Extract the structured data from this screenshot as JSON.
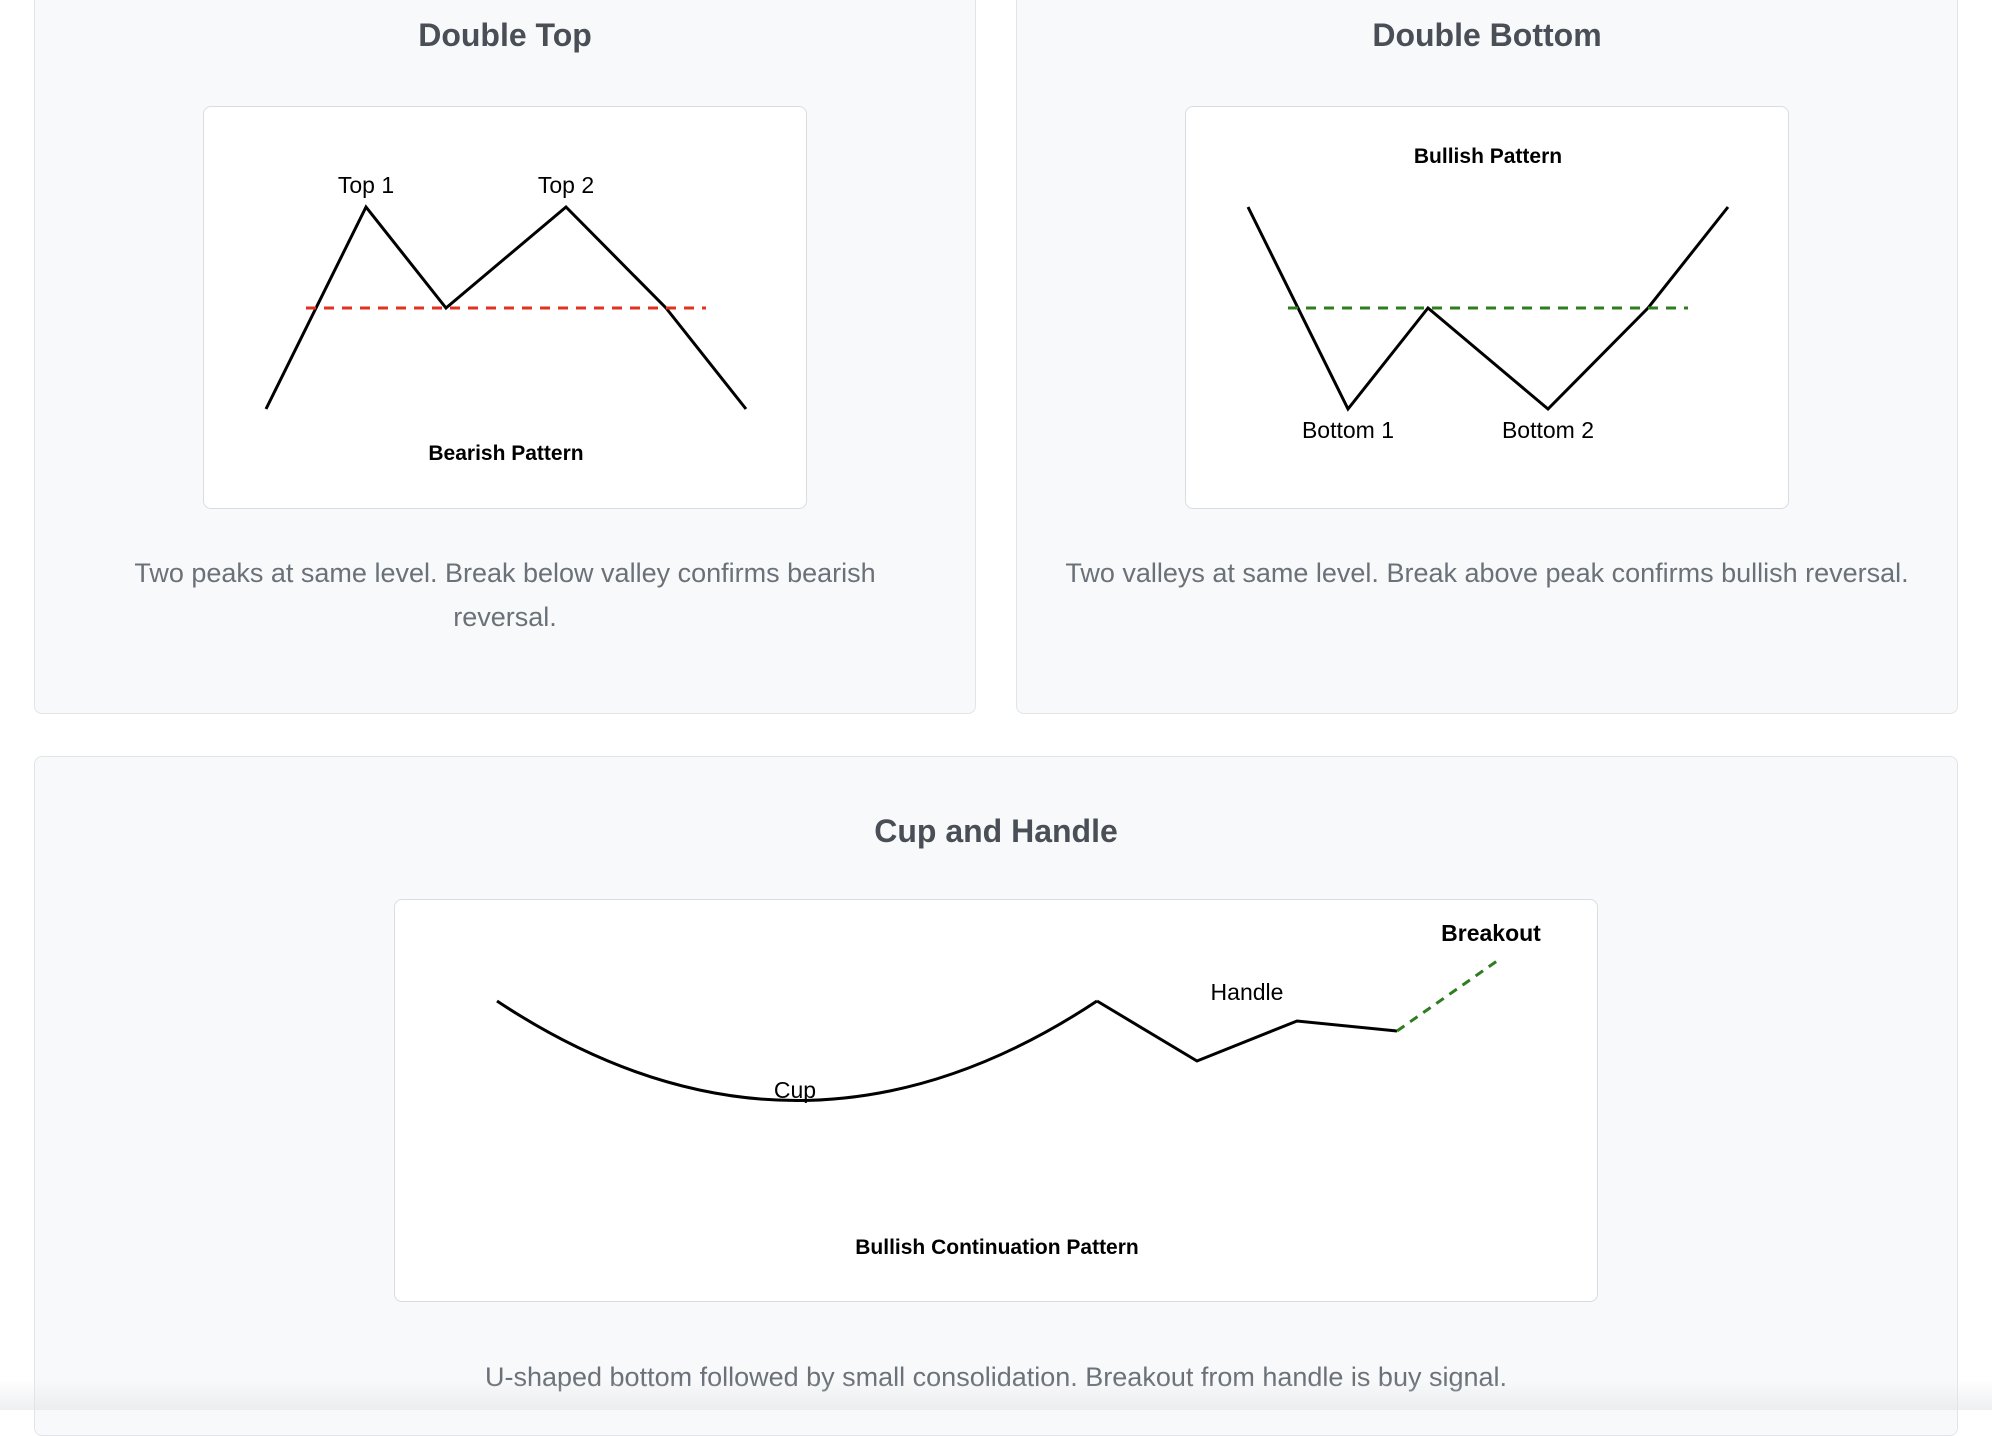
{
  "patterns": [
    {
      "title": "Double Top",
      "description": "Two peaks at same level. Break below valley confirms bearish reversal.",
      "labels": {
        "peak1": "Top 1",
        "peak2": "Top 2",
        "pattern": "Bearish Pattern"
      },
      "colors": {
        "line": "#000000",
        "level": "#e0321e"
      }
    },
    {
      "title": "Double Bottom",
      "description": "Two valleys at same level. Break above peak confirms bullish reversal.",
      "labels": {
        "pattern": "Bullish Pattern",
        "trough1": "Bottom 1",
        "trough2": "Bottom 2"
      },
      "colors": {
        "line": "#000000",
        "level": "#2e7d1f"
      }
    },
    {
      "title": "Cup and Handle",
      "description": "U-shaped bottom followed by small consolidation. Breakout from handle is buy signal.",
      "labels": {
        "breakout": "Breakout",
        "handle": "Handle",
        "cup": "Cup",
        "pattern": "Bullish Continuation Pattern"
      },
      "colors": {
        "line": "#000000",
        "breakout": "#2e7d1f"
      }
    }
  ]
}
